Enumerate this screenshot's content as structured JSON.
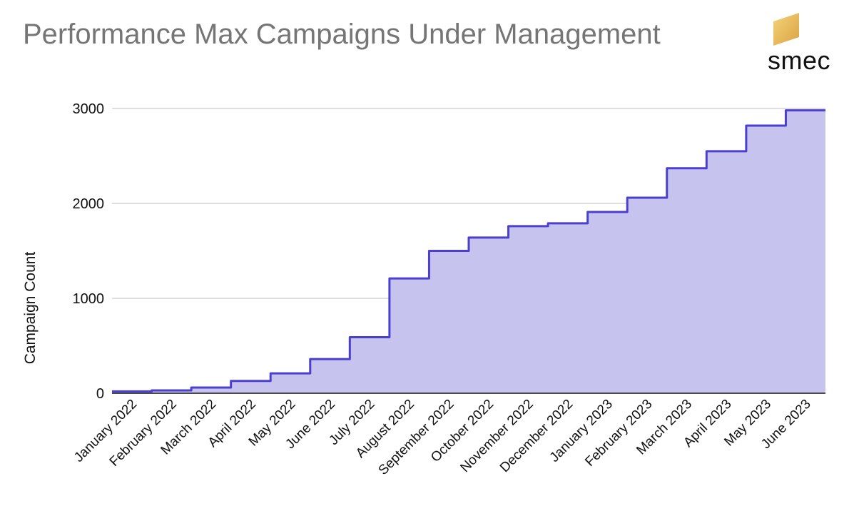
{
  "header": {
    "title": "Performance Max Campaigns Under Management"
  },
  "logo": {
    "text": "smec",
    "colors": [
      "#F5D27A",
      "#D9A441"
    ]
  },
  "chart_data": {
    "type": "area",
    "step": true,
    "title": "Performance Max Campaigns Under Management",
    "xlabel": "",
    "ylabel": "Campaign Count",
    "categories": [
      "January 2022",
      "February 2022",
      "March 2022",
      "April 2022",
      "May 2022",
      "June 2022",
      "July 2022",
      "August 2022",
      "September 2022",
      "October 2022",
      "November 2022",
      "December 2022",
      "January 2023",
      "February 2023",
      "March 2023",
      "April 2023",
      "May 2023",
      "June 2023"
    ],
    "series": [
      {
        "values": [
          20,
          30,
          60,
          130,
          210,
          360,
          590,
          1210,
          1500,
          1640,
          1760,
          1790,
          1910,
          2060,
          2370,
          2550,
          2820,
          2980
        ]
      }
    ],
    "yticks": [
      0,
      1000,
      2000,
      3000
    ],
    "ylim": [
      0,
      3000
    ],
    "grid": true,
    "legend": "none",
    "colors": {
      "line": "#4B3FD0",
      "fill": "#C7C3EF",
      "grid": "#CCCCCC",
      "axis": "#111111"
    }
  }
}
